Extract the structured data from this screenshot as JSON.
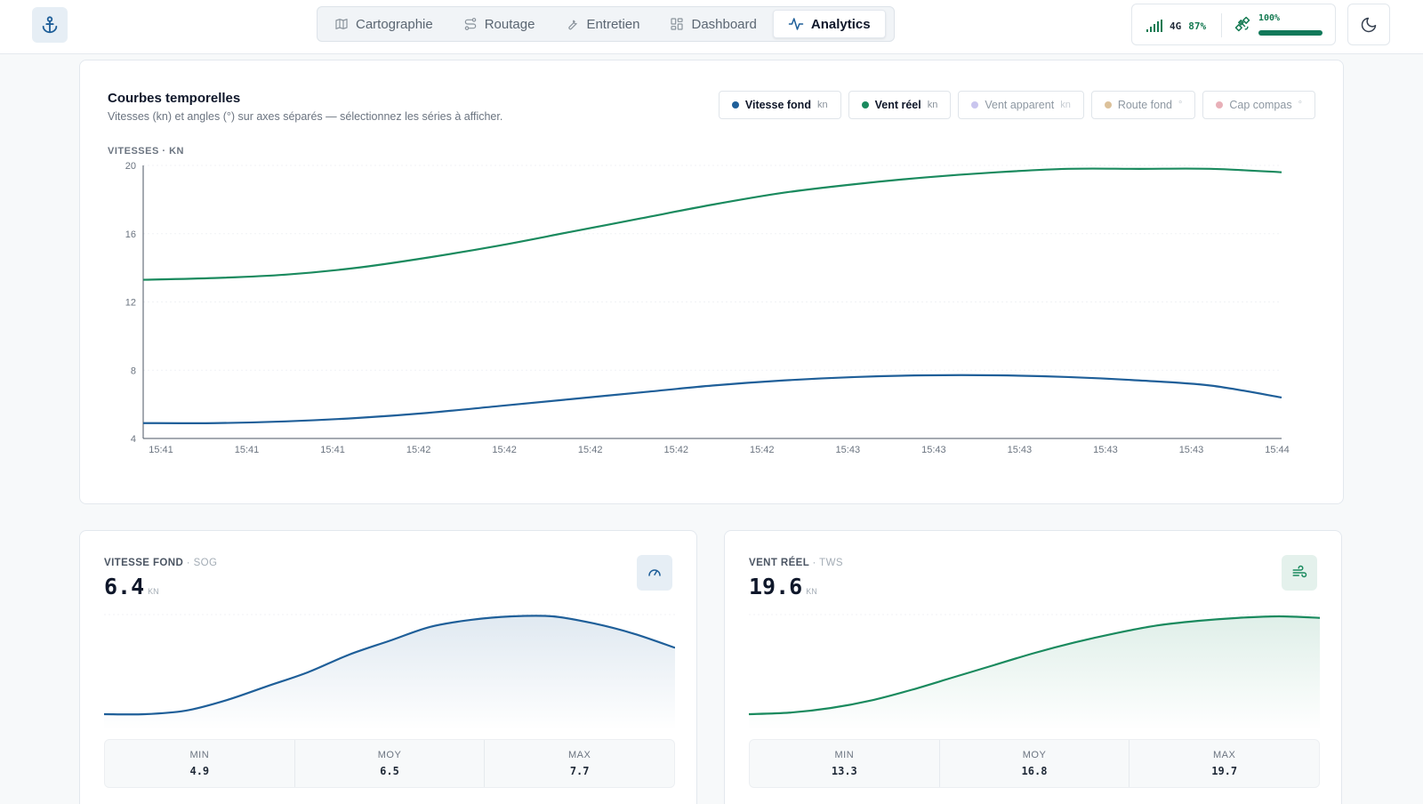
{
  "nav": {
    "items": [
      {
        "label": "Cartographie",
        "icon": "map-icon"
      },
      {
        "label": "Routage",
        "icon": "route-icon"
      },
      {
        "label": "Entretien",
        "icon": "wrench-icon"
      },
      {
        "label": "Dashboard",
        "icon": "dashboard-icon"
      },
      {
        "label": "Analytics",
        "icon": "activity-icon",
        "active": true
      }
    ]
  },
  "status": {
    "network": "4G",
    "signal_pct": "87%",
    "gps_pct": "100%",
    "gps_level": 1.0
  },
  "colors": {
    "sog": "#1f5f99",
    "tws": "#1a8a5e",
    "awa_chip": "#b7b3e6",
    "cog_chip": "#d9b98a",
    "hdg_chip": "#e6a3ad"
  },
  "main": {
    "title": "Courbes temporelles",
    "subtitle": "Vitesses (kn) et angles (°) sur axes séparés — sélectionnez les séries à afficher.",
    "axis_title": "VITESSES · KN",
    "legend": [
      {
        "label": "Vitesse fond",
        "unit": "kn",
        "active": true,
        "color": "#1f5f99"
      },
      {
        "label": "Vent réel",
        "unit": "kn",
        "active": true,
        "color": "#1a8a5e"
      },
      {
        "label": "Vent apparent",
        "unit": "kn",
        "active": false,
        "color": "#b7b3e6"
      },
      {
        "label": "Route fond",
        "unit": "°",
        "active": false,
        "color": "#d9b98a"
      },
      {
        "label": "Cap compas",
        "unit": "°",
        "active": false,
        "color": "#e6a3ad"
      }
    ]
  },
  "chart_data": [
    {
      "type": "line",
      "ylabel": "VITESSES · KN",
      "ylim": [
        4,
        20
      ],
      "yticks": [
        4,
        8,
        12,
        16,
        20
      ],
      "x_ticks": [
        "15:41",
        "15:41",
        "15:41",
        "15:42",
        "15:42",
        "15:42",
        "15:42",
        "15:42",
        "15:43",
        "15:43",
        "15:43",
        "15:43",
        "15:43",
        "15:44"
      ],
      "x": [
        0,
        1,
        2,
        3,
        4,
        5,
        6,
        7,
        8,
        9,
        10,
        11,
        12,
        13,
        14,
        15,
        16
      ],
      "series": [
        {
          "name": "Vent réel",
          "color": "#1a8a5e",
          "values": [
            13.3,
            13.4,
            13.6,
            14.0,
            14.6,
            15.3,
            16.1,
            16.9,
            17.7,
            18.4,
            18.9,
            19.3,
            19.6,
            19.8,
            19.8,
            19.8,
            19.6
          ]
        },
        {
          "name": "Vitesse fond",
          "color": "#1f5f99",
          "values": [
            4.9,
            4.9,
            5.0,
            5.2,
            5.5,
            5.9,
            6.3,
            6.7,
            7.1,
            7.4,
            7.6,
            7.7,
            7.7,
            7.6,
            7.4,
            7.1,
            6.4
          ]
        }
      ],
      "grid": true
    },
    {
      "type": "area",
      "title": "VITESSE FOND · SOG",
      "series": [
        {
          "name": "Vitesse fond",
          "color": "#1f5f99",
          "values": [
            4.9,
            4.9,
            5.0,
            5.3,
            5.7,
            6.1,
            6.6,
            7.0,
            7.4,
            7.6,
            7.7,
            7.7,
            7.5,
            7.2,
            6.8
          ]
        }
      ],
      "ylim": [
        4.9,
        7.7
      ]
    },
    {
      "type": "area",
      "title": "VENT RÉEL · TWS",
      "series": [
        {
          "name": "Vent réel",
          "color": "#1a8a5e",
          "values": [
            13.3,
            13.4,
            13.7,
            14.2,
            14.9,
            15.7,
            16.5,
            17.3,
            18.0,
            18.6,
            19.1,
            19.4,
            19.6,
            19.7,
            19.6
          ]
        }
      ],
      "ylim": [
        13.3,
        19.7
      ]
    }
  ],
  "cards": [
    {
      "label": "VITESSE FOND",
      "code": "· SOG",
      "value": "6.4",
      "unit": "KN",
      "icon": "gauge-icon",
      "stats": [
        {
          "k": "MIN",
          "v": "4.9"
        },
        {
          "k": "MOY",
          "v": "6.5"
        },
        {
          "k": "MAX",
          "v": "7.7"
        }
      ]
    },
    {
      "label": "VENT RÉEL",
      "code": "· TWS",
      "value": "19.6",
      "unit": "KN",
      "icon": "wind-icon",
      "stats": [
        {
          "k": "MIN",
          "v": "13.3"
        },
        {
          "k": "MOY",
          "v": "16.8"
        },
        {
          "k": "MAX",
          "v": "19.7"
        }
      ]
    }
  ]
}
